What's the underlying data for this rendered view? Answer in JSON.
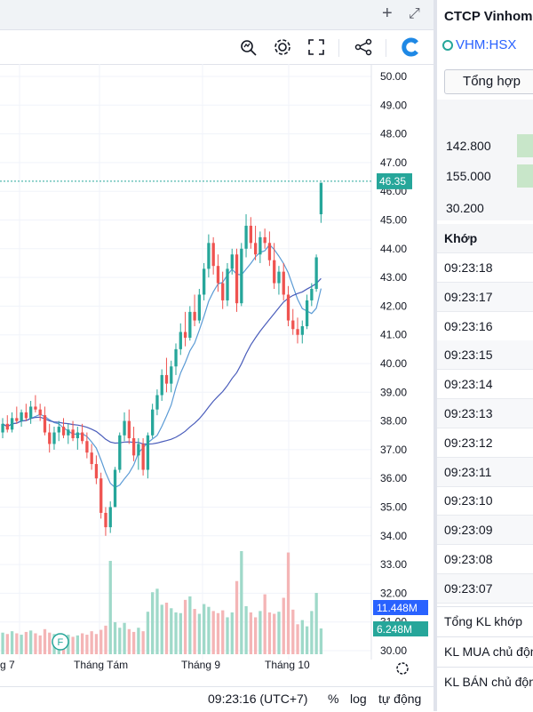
{
  "toolbar": {
    "icons": [
      "plus-icon",
      "expand-icon",
      "indicator-icon",
      "settings-icon",
      "fullscreen-icon",
      "share-icon",
      "logo-icon"
    ]
  },
  "chart_data": {
    "type": "candlestick",
    "price_axis": {
      "labels": [
        "50.00",
        "49.00",
        "48.00",
        "47.00",
        "46.00",
        "45.00",
        "44.00",
        "43.00",
        "42.00",
        "41.00",
        "40.00",
        "39.00",
        "38.00",
        "37.00",
        "36.00",
        "35.00",
        "34.00",
        "33.00",
        "32.00",
        "31.00",
        "30.00"
      ],
      "range": [
        30,
        50
      ]
    },
    "time_axis": {
      "labels": [
        "g 7",
        "Tháng Tám",
        "Tháng 9",
        "Tháng 10"
      ]
    },
    "last_price": {
      "value": 46.35,
      "label": "46.35"
    },
    "volume_labels": [
      {
        "label": "11.448M",
        "color": "#2962ff"
      },
      {
        "label": "6.248M",
        "color": "#26a69a"
      }
    ],
    "marker": "F",
    "candles": [
      [
        37.6,
        38.1,
        37.4,
        37.9
      ],
      [
        37.9,
        38.2,
        37.6,
        37.7
      ],
      [
        37.7,
        38.3,
        37.6,
        38.1
      ],
      [
        38.1,
        38.5,
        37.9,
        38.0
      ],
      [
        38.0,
        38.4,
        37.8,
        38.3
      ],
      [
        38.3,
        38.6,
        38.0,
        38.1
      ],
      [
        38.1,
        38.7,
        37.9,
        38.5
      ],
      [
        38.5,
        38.9,
        38.3,
        38.4
      ],
      [
        38.4,
        38.6,
        38.0,
        38.2
      ],
      [
        38.2,
        38.5,
        37.5,
        37.6
      ],
      [
        37.6,
        37.9,
        36.9,
        37.2
      ],
      [
        37.2,
        37.8,
        37.0,
        37.6
      ],
      [
        37.6,
        38.0,
        37.3,
        37.8
      ],
      [
        37.8,
        38.1,
        37.4,
        37.5
      ],
      [
        37.5,
        37.9,
        37.2,
        37.7
      ],
      [
        37.7,
        38.0,
        37.3,
        37.4
      ],
      [
        37.4,
        37.8,
        37.0,
        37.6
      ],
      [
        37.6,
        37.9,
        37.2,
        37.3
      ],
      [
        37.3,
        37.6,
        36.7,
        36.9
      ],
      [
        36.9,
        37.2,
        36.3,
        36.5
      ],
      [
        36.5,
        36.8,
        35.8,
        36.0
      ],
      [
        36.0,
        36.2,
        34.6,
        34.8
      ],
      [
        34.8,
        35.0,
        34.0,
        34.3
      ],
      [
        34.3,
        35.2,
        34.1,
        35.0
      ],
      [
        35.0,
        36.4,
        35.0,
        36.3
      ],
      [
        36.3,
        37.6,
        36.2,
        37.5
      ],
      [
        37.5,
        38.3,
        37.3,
        38.0
      ],
      [
        38.0,
        38.4,
        37.2,
        37.4
      ],
      [
        37.4,
        37.8,
        36.6,
        36.8
      ],
      [
        36.8,
        37.4,
        36.3,
        37.2
      ],
      [
        37.2,
        37.4,
        36.1,
        36.3
      ],
      [
        36.3,
        37.6,
        36.0,
        37.5
      ],
      [
        37.5,
        38.6,
        37.4,
        38.4
      ],
      [
        38.4,
        39.1,
        38.2,
        38.9
      ],
      [
        38.9,
        39.8,
        38.7,
        39.6
      ],
      [
        39.6,
        40.2,
        39.0,
        39.3
      ],
      [
        39.3,
        40.1,
        39.0,
        39.9
      ],
      [
        39.9,
        40.7,
        39.6,
        40.5
      ],
      [
        40.5,
        41.4,
        40.3,
        41.1
      ],
      [
        41.1,
        41.8,
        40.6,
        40.9
      ],
      [
        40.9,
        42.0,
        40.8,
        41.8
      ],
      [
        41.8,
        42.4,
        41.3,
        41.5
      ],
      [
        41.5,
        42.6,
        41.4,
        42.4
      ],
      [
        42.4,
        43.5,
        42.2,
        43.3
      ],
      [
        43.3,
        44.5,
        43.0,
        44.2
      ],
      [
        44.2,
        44.4,
        43.1,
        43.4
      ],
      [
        43.4,
        43.8,
        42.5,
        42.8
      ],
      [
        42.8,
        43.2,
        41.9,
        42.2
      ],
      [
        42.2,
        43.5,
        42.0,
        43.3
      ],
      [
        43.3,
        44.0,
        43.1,
        43.8
      ],
      [
        43.8,
        44.0,
        41.8,
        42.1
      ],
      [
        42.1,
        44.2,
        42.0,
        44.0
      ],
      [
        44.0,
        45.2,
        43.7,
        44.8
      ],
      [
        44.8,
        45.1,
        44.0,
        44.2
      ],
      [
        44.2,
        44.8,
        43.6,
        43.8
      ],
      [
        43.8,
        44.6,
        43.5,
        44.4
      ],
      [
        44.4,
        44.7,
        44.0,
        44.2
      ],
      [
        44.2,
        44.6,
        43.4,
        43.6
      ],
      [
        43.6,
        44.2,
        42.6,
        42.8
      ],
      [
        42.8,
        43.4,
        42.4,
        43.2
      ],
      [
        43.2,
        43.5,
        42.2,
        42.4
      ],
      [
        42.4,
        42.7,
        41.3,
        41.5
      ],
      [
        41.5,
        41.9,
        41.0,
        41.2
      ],
      [
        41.2,
        41.6,
        40.7,
        41.0
      ],
      [
        41.0,
        41.5,
        40.7,
        41.3
      ],
      [
        41.3,
        42.4,
        41.2,
        42.2
      ],
      [
        42.2,
        42.8,
        42.0,
        42.6
      ],
      [
        42.6,
        43.8,
        42.5,
        43.7
      ],
      [
        45.2,
        46.3,
        44.9,
        46.3
      ]
    ],
    "volumes": [
      3.1,
      2.9,
      3.3,
      3.0,
      2.8,
      3.2,
      3.4,
      3.0,
      2.7,
      3.6,
      3.1,
      2.9,
      3.0,
      2.6,
      2.8,
      2.5,
      2.7,
      3.0,
      2.8,
      3.3,
      2.9,
      3.5,
      4.1,
      13.4,
      4.6,
      3.8,
      4.5,
      3.6,
      3.2,
      3.8,
      3.3,
      6.1,
      8.9,
      9.4,
      7.1,
      7.4,
      6.6,
      6.0,
      5.9,
      7.8,
      8.3,
      6.5,
      5.8,
      7.2,
      6.8,
      6.2,
      5.9,
      6.3,
      5.3,
      6.0,
      10.5,
      14.8,
      6.9,
      6.0,
      5.3,
      6.2,
      8.6,
      6.0,
      5.8,
      6.1,
      8.1,
      14.6,
      6.4,
      4.3,
      4.9,
      4.0,
      6.2,
      8.8,
      3.7
    ]
  },
  "bottom_bar": {
    "time": "09:23:16 (UTC+7)",
    "percent": "%",
    "log": "log",
    "auto": "tự động"
  },
  "side_panel": {
    "company": "CTCP Vinhomes",
    "ticker": "VHM:HSX",
    "tab": "Tổng hợp",
    "levels": [
      "142.800",
      "155.000",
      "30.200"
    ],
    "match_header": "Khớp",
    "times": [
      "09:23:18",
      "09:23:17",
      "09:23:16",
      "09:23:15",
      "09:23:14",
      "09:23:13",
      "09:23:12",
      "09:23:11",
      "09:23:10",
      "09:23:09",
      "09:23:08",
      "09:23:07"
    ],
    "footer": [
      "Tổng KL khớp",
      "KL MUA chủ động",
      "KL BÁN chủ động"
    ]
  }
}
